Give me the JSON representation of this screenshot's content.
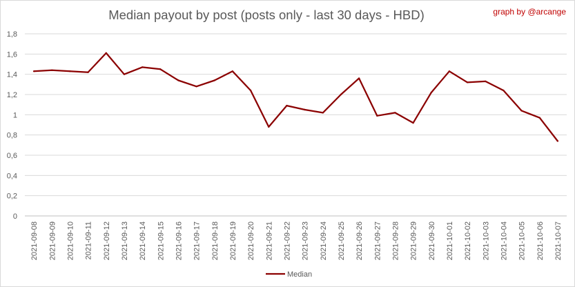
{
  "chart_data": {
    "type": "line",
    "title": "Median payout by post (posts only - last 30 days - HBD)",
    "credit": "graph by @arcange",
    "xlabel": "",
    "ylabel": "",
    "ylim": [
      0,
      1.8
    ],
    "yticks": [
      "0",
      "0,2",
      "0,4",
      "0,6",
      "0,8",
      "1",
      "1,2",
      "1,4",
      "1,6",
      "1,8"
    ],
    "grid": true,
    "legend_position": "bottom",
    "categories": [
      "2021-09-08",
      "2021-09-09",
      "2021-09-10",
      "2021-09-11",
      "2021-09-12",
      "2021-09-13",
      "2021-09-14",
      "2021-09-15",
      "2021-09-16",
      "2021-09-17",
      "2021-09-18",
      "2021-09-19",
      "2021-09-20",
      "2021-09-21",
      "2021-09-22",
      "2021-09-23",
      "2021-09-24",
      "2021-09-25",
      "2021-09-26",
      "2021-09-27",
      "2021-09-28",
      "2021-09-29",
      "2021-09-30",
      "2021-10-01",
      "2021-10-02",
      "2021-10-03",
      "2021-10-04",
      "2021-10-05",
      "2021-10-06",
      "2021-10-07"
    ],
    "series": [
      {
        "name": "Median",
        "color": "#8b0000",
        "values": [
          1.43,
          1.44,
          1.43,
          1.42,
          1.61,
          1.4,
          1.47,
          1.45,
          1.34,
          1.28,
          1.34,
          1.43,
          1.24,
          0.88,
          1.09,
          1.05,
          1.02,
          1.2,
          1.36,
          0.99,
          1.02,
          0.92,
          1.22,
          1.43,
          1.32,
          1.33,
          1.24,
          1.04,
          0.97,
          0.74
        ]
      }
    ]
  }
}
